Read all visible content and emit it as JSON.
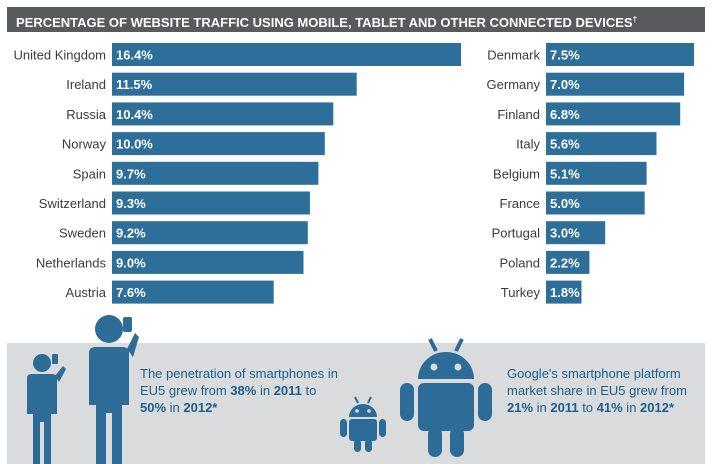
{
  "title": "PERCENTAGE OF WEBSITE TRAFFIC USING MOBILE, TABLET AND OTHER CONNECTED DEVICES",
  "title_mark": "†",
  "colors": {
    "bar": "#2e6f99",
    "header_bg": "#595a5c",
    "panel_bg": "#d9dbdd",
    "accent": "#1c5f8c",
    "icon": "#2c6c96"
  },
  "chart_data": [
    {
      "type": "bar",
      "orientation": "horizontal",
      "categories": [
        "United Kingdom",
        "Ireland",
        "Russia",
        "Norway",
        "Spain",
        "Switzerland",
        "Sweden",
        "Netherlands",
        "Austria"
      ],
      "values": [
        16.4,
        11.5,
        10.4,
        10.0,
        9.7,
        9.3,
        9.2,
        9.0,
        7.6
      ],
      "labels": [
        "16.4%",
        "11.5%",
        "10.4%",
        "10.0%",
        "9.7%",
        "9.3%",
        "9.2%",
        "9.0%",
        "7.6%"
      ],
      "unit": "%",
      "xlim": [
        0,
        16.4
      ]
    },
    {
      "type": "bar",
      "orientation": "horizontal",
      "categories": [
        "Denmark",
        "Germany",
        "Finland",
        "Italy",
        "Belgium",
        "France",
        "Portugal",
        "Poland",
        "Turkey"
      ],
      "values": [
        7.5,
        7.0,
        6.8,
        5.6,
        5.1,
        5.0,
        3.0,
        2.2,
        1.8
      ],
      "labels": [
        "7.5%",
        "7.0%",
        "6.8%",
        "5.6%",
        "5.1%",
        "5.0%",
        "3.0%",
        "2.2%",
        "1.8%"
      ],
      "unit": "%",
      "xlim": [
        0,
        7.5
      ]
    }
  ],
  "info": {
    "smartphones": {
      "p1": "The penetration of smartphones in EU5 grew from ",
      "v1": "38%",
      "p2": " in ",
      "y1": "2011",
      "p3": " to ",
      "v2": "50%",
      "p4": " in ",
      "y2": "2012*"
    },
    "android": {
      "p1": "Google's smartphone platform market share in EU5 grew from ",
      "v1": "21%",
      "p2": " in ",
      "y1": "2011",
      "p3": " to ",
      "v2": "41%",
      "p4": " in ",
      "y2": "2012*"
    }
  }
}
